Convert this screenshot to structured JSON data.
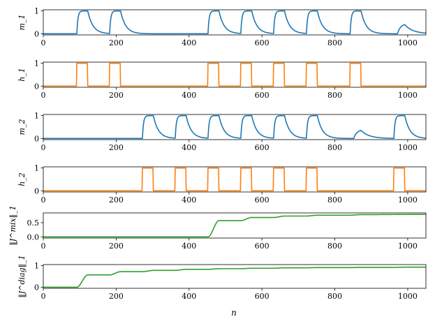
{
  "figure": {
    "xlabel": "n",
    "xlim": [
      0,
      1050
    ],
    "xticks": [
      0,
      200,
      400,
      600,
      800,
      1000
    ]
  },
  "chart_data": [
    {
      "type": "line",
      "ylabel": "m_1",
      "ylim": [
        -0.05,
        1.05
      ],
      "yticks": [
        0,
        1
      ],
      "series": [
        {
          "color": "#1f77b4",
          "kind": "membrane",
          "active_intervals": [
            [
              92,
              122
            ],
            [
              182,
              212
            ],
            [
              452,
              482
            ],
            [
              542,
              572
            ],
            [
              632,
              662
            ],
            [
              722,
              752
            ],
            [
              842,
              872
            ]
          ],
          "partial_peaks": [
            {
              "x": 992,
              "y": 0.4
            }
          ]
        }
      ]
    },
    {
      "type": "line",
      "ylabel": "h_1",
      "ylim": [
        -0.05,
        1.05
      ],
      "yticks": [
        0,
        1
      ],
      "series": [
        {
          "color": "#ff7f0e",
          "kind": "step",
          "active_intervals": [
            [
              92,
              122
            ],
            [
              182,
              212
            ],
            [
              452,
              482
            ],
            [
              542,
              572
            ],
            [
              632,
              662
            ],
            [
              722,
              752
            ],
            [
              842,
              872
            ]
          ]
        }
      ]
    },
    {
      "type": "line",
      "ylabel": "m_2",
      "ylim": [
        -0.05,
        1.05
      ],
      "yticks": [
        0,
        1
      ],
      "series": [
        {
          "color": "#1f77b4",
          "kind": "membrane",
          "active_intervals": [
            [
              272,
              302
            ],
            [
              362,
              392
            ],
            [
              452,
              482
            ],
            [
              542,
              572
            ],
            [
              632,
              662
            ],
            [
              722,
              752
            ],
            [
              962,
              992
            ]
          ],
          "partial_peaks": [
            {
              "x": 872,
              "y": 0.35
            }
          ]
        }
      ]
    },
    {
      "type": "line",
      "ylabel": "h_2",
      "ylim": [
        -0.05,
        1.05
      ],
      "yticks": [
        0,
        1
      ],
      "series": [
        {
          "color": "#ff7f0e",
          "kind": "step",
          "active_intervals": [
            [
              272,
              302
            ],
            [
              362,
              392
            ],
            [
              452,
              482
            ],
            [
              542,
              572
            ],
            [
              632,
              662
            ],
            [
              722,
              752
            ],
            [
              962,
              992
            ]
          ]
        }
      ]
    },
    {
      "type": "line",
      "ylabel": "‖J^mix‖_1",
      "ylim": [
        -0.04,
        0.84
      ],
      "yticks": [
        0.0,
        0.5
      ],
      "ytick_labels": [
        "0.0",
        "0.5"
      ],
      "series": [
        {
          "color": "#2ca02c",
          "kind": "staircase",
          "x": [
            0,
            452,
            482,
            542,
            572,
            632,
            662,
            722,
            752,
            842,
            872,
            1050
          ],
          "y": [
            0.0,
            0.0,
            0.57,
            0.57,
            0.68,
            0.68,
            0.73,
            0.73,
            0.76,
            0.76,
            0.78,
            0.79
          ]
        }
      ]
    },
    {
      "type": "line",
      "ylabel": "‖J^diag‖_1",
      "ylim": [
        -0.05,
        1.05
      ],
      "yticks": [
        0,
        1
      ],
      "series": [
        {
          "color": "#2ca02c",
          "kind": "staircase",
          "x": [
            0,
            92,
            122,
            182,
            212,
            272,
            302,
            362,
            392,
            452,
            482,
            542,
            572,
            632,
            662,
            722,
            752,
            842,
            872,
            962,
            992,
            1050
          ],
          "y": [
            0.0,
            0.0,
            0.57,
            0.57,
            0.72,
            0.72,
            0.78,
            0.78,
            0.83,
            0.83,
            0.86,
            0.86,
            0.88,
            0.88,
            0.9,
            0.9,
            0.91,
            0.91,
            0.92,
            0.92,
            0.93,
            0.93
          ]
        }
      ]
    }
  ]
}
